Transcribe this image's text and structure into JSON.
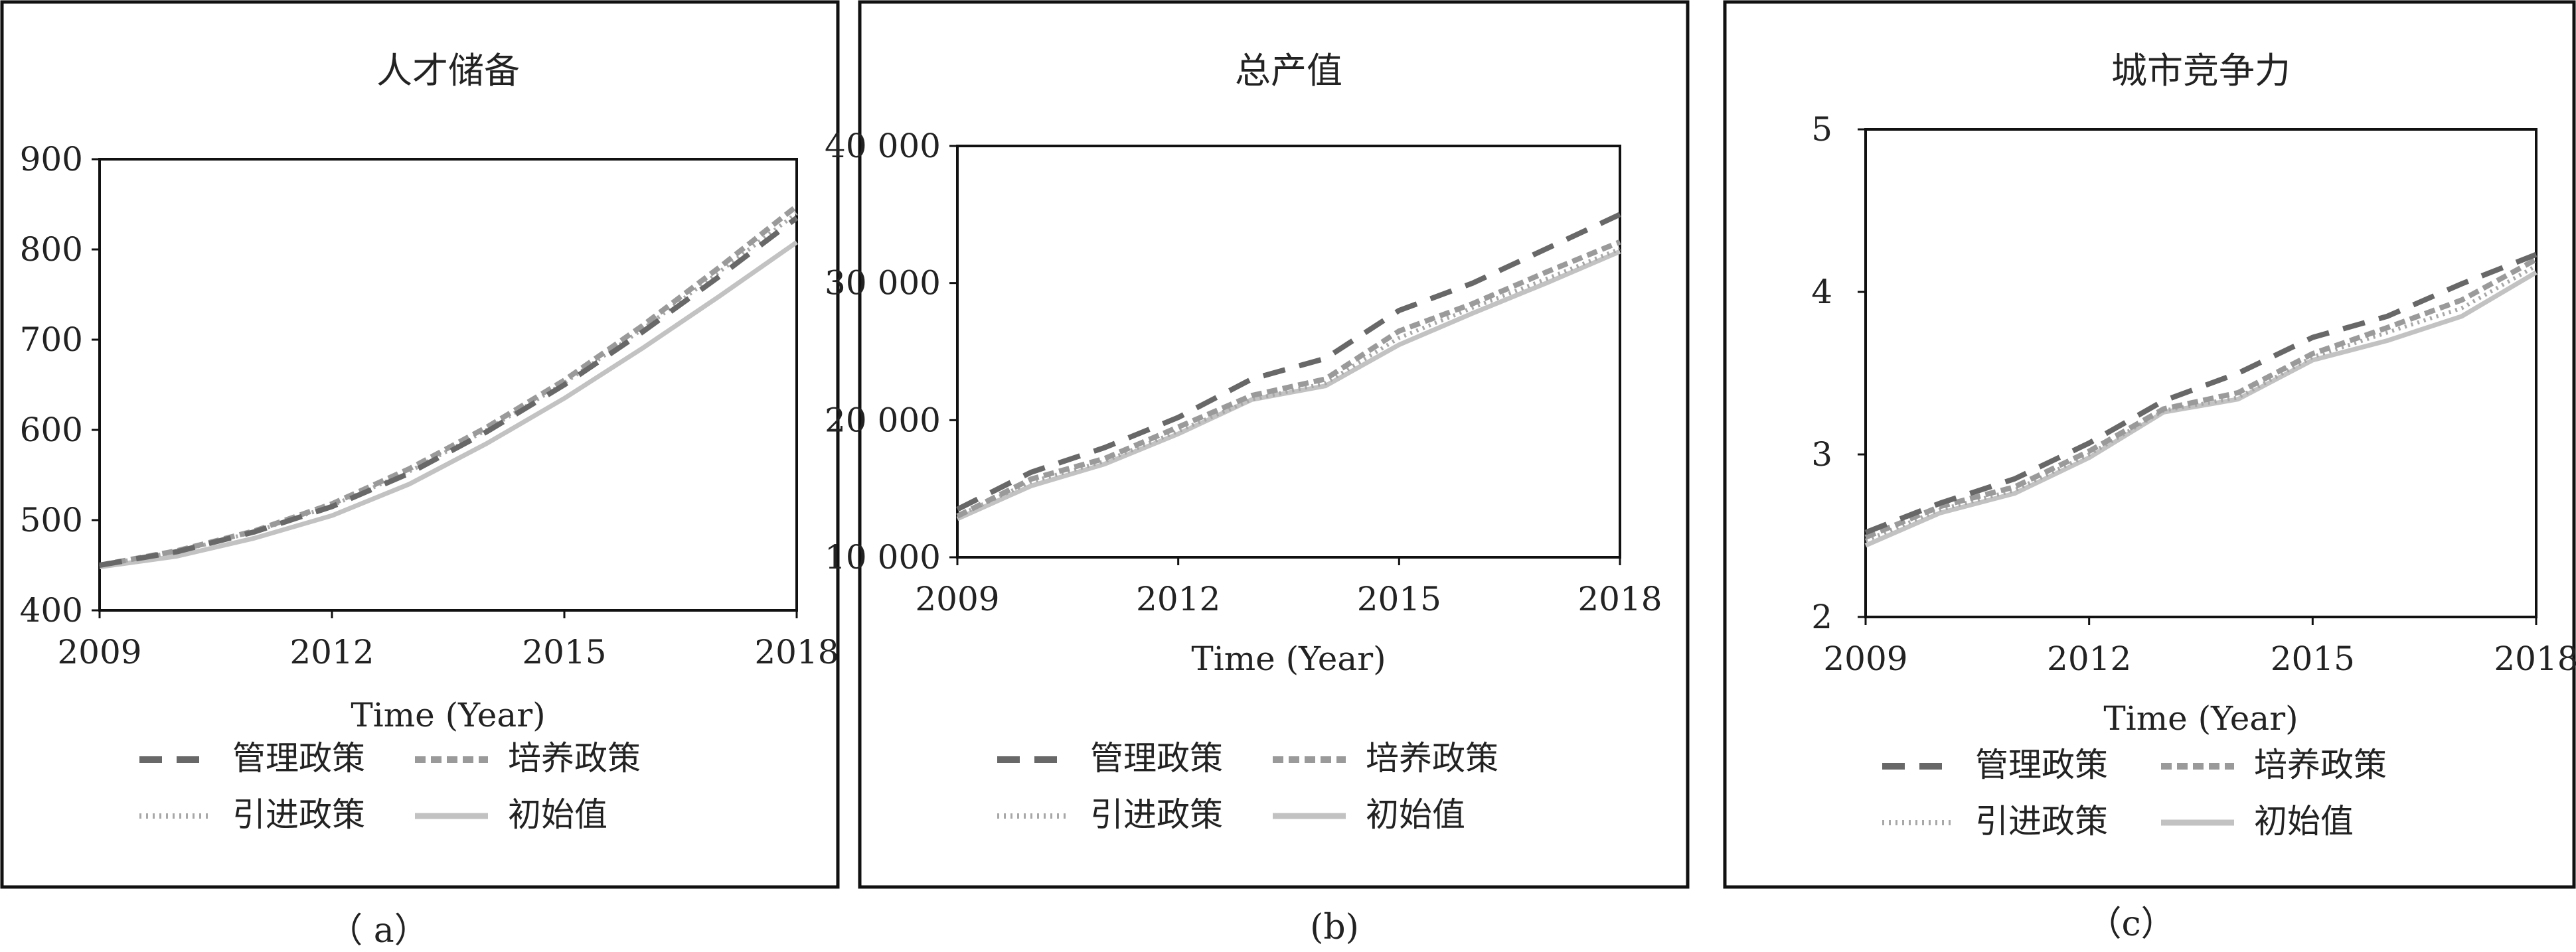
{
  "colors": {
    "management": "#686868",
    "training": "#9a9a9a",
    "introduction": "#a8a8a8",
    "initial": "#c2c2c2",
    "frame": "#111111"
  },
  "chart_data": [
    {
      "type": "line",
      "title": "人才储备",
      "xlabel": "Time (Year)",
      "ylabel": "",
      "xlim": [
        2009,
        2018
      ],
      "ylim": [
        400,
        900
      ],
      "yticks": [
        400,
        500,
        600,
        700,
        800,
        900
      ],
      "ytick_labels": [
        "400",
        "500",
        "600",
        "700",
        "800",
        "900"
      ],
      "xticks": [
        2009,
        2012,
        2015,
        2018
      ],
      "xtick_labels": [
        "2009",
        "2012",
        "2015",
        "2018"
      ],
      "caption": "（ a）",
      "x": [
        2009,
        2010,
        2011,
        2012,
        2013,
        2014,
        2015,
        2016,
        2017,
        2018
      ],
      "series": [
        {
          "name": "管理政策",
          "style": "dashed-dark",
          "values": [
            450,
            465,
            487,
            515,
            552,
            598,
            650,
            708,
            770,
            835
          ]
        },
        {
          "name": "培养政策",
          "style": "dashed-light",
          "values": [
            450,
            466,
            488,
            518,
            557,
            603,
            655,
            715,
            780,
            848
          ]
        },
        {
          "name": "引进政策",
          "style": "dotted",
          "values": [
            450,
            465,
            487,
            516,
            554,
            600,
            652,
            711,
            775,
            840
          ]
        },
        {
          "name": "初始值",
          "style": "solid",
          "values": [
            448,
            460,
            480,
            505,
            540,
            585,
            635,
            690,
            748,
            808
          ]
        }
      ]
    },
    {
      "type": "line",
      "title": "总产值",
      "xlabel": "Time (Year)",
      "ylabel": "",
      "xlim": [
        2009,
        2018
      ],
      "ylim": [
        10000,
        40000
      ],
      "yticks": [
        10000,
        20000,
        30000,
        40000
      ],
      "ytick_labels": [
        "10 000",
        "20 000",
        "30 000",
        "40 000"
      ],
      "xticks": [
        2009,
        2012,
        2015,
        2018
      ],
      "xtick_labels": [
        "2009",
        "2012",
        "2015",
        "2018"
      ],
      "caption": "(b)",
      "x": [
        2009,
        2010,
        2011,
        2012,
        2013,
        2014,
        2015,
        2016,
        2017,
        2018
      ],
      "series": [
        {
          "name": "管理政策",
          "style": "dashed-dark",
          "values": [
            13500,
            16200,
            18000,
            20200,
            23000,
            24500,
            28000,
            30000,
            32500,
            35000
          ]
        },
        {
          "name": "培养政策",
          "style": "dashed-light",
          "values": [
            13000,
            15700,
            17200,
            19500,
            21800,
            23000,
            26500,
            28500,
            30800,
            33000
          ]
        },
        {
          "name": "引进政策",
          "style": "dotted",
          "values": [
            13000,
            15500,
            17000,
            19200,
            21500,
            22700,
            26000,
            28200,
            30300,
            32500
          ]
        },
        {
          "name": "初始值",
          "style": "solid",
          "values": [
            12800,
            15200,
            16800,
            19000,
            21500,
            22500,
            25500,
            27800,
            30000,
            32300
          ]
        }
      ]
    },
    {
      "type": "line",
      "title": "城市竞争力",
      "xlabel": "Time (Year)",
      "ylabel": "",
      "xlim": [
        2009,
        2018
      ],
      "ylim": [
        2,
        5
      ],
      "yticks": [
        2,
        3,
        4,
        5
      ],
      "ytick_labels": [
        "2",
        "3",
        "4",
        "5"
      ],
      "xticks": [
        2009,
        2012,
        2015,
        2018
      ],
      "xtick_labels": [
        "2009",
        "2012",
        "2015",
        "2018"
      ],
      "caption": "（c）",
      "x": [
        2009,
        2010,
        2011,
        2012,
        2013,
        2014,
        2015,
        2016,
        2017,
        2018
      ],
      "series": [
        {
          "name": "管理政策",
          "style": "dashed-dark",
          "values": [
            2.52,
            2.7,
            2.85,
            3.07,
            3.33,
            3.5,
            3.72,
            3.85,
            4.05,
            4.23
          ]
        },
        {
          "name": "培养政策",
          "style": "dashed-light",
          "values": [
            2.49,
            2.68,
            2.8,
            3.02,
            3.28,
            3.38,
            3.62,
            3.78,
            3.95,
            4.2
          ]
        },
        {
          "name": "引进政策",
          "style": "dotted",
          "values": [
            2.47,
            2.66,
            2.78,
            3.0,
            3.27,
            3.35,
            3.6,
            3.75,
            3.9,
            4.16
          ]
        },
        {
          "name": "初始值",
          "style": "solid",
          "values": [
            2.44,
            2.64,
            2.76,
            2.98,
            3.26,
            3.34,
            3.58,
            3.7,
            3.85,
            4.12
          ]
        }
      ]
    }
  ]
}
